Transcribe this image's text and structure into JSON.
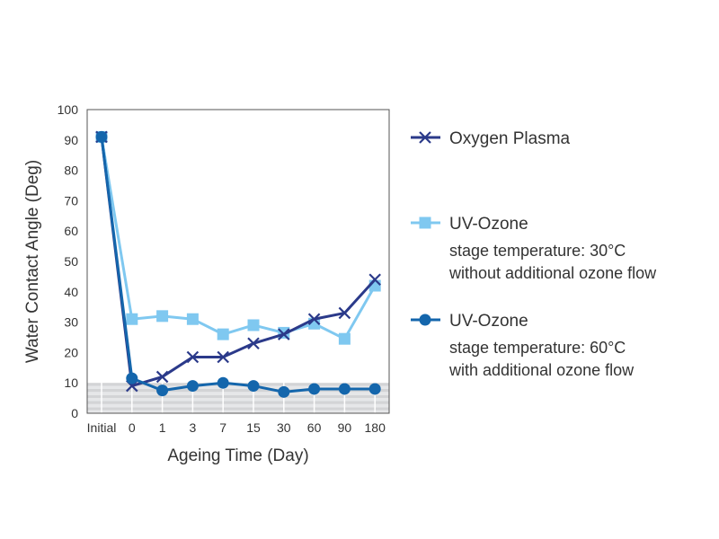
{
  "chart_data": {
    "type": "line",
    "xlabel": "Ageing Time (Day)",
    "ylabel": "Water Contact Angle (Deg)",
    "categories": [
      "Initial",
      "0",
      "1",
      "3",
      "7",
      "15",
      "30",
      "60",
      "90",
      "180"
    ],
    "ylim": [
      0,
      100
    ],
    "yticks": [
      "0",
      "10",
      "20",
      "30",
      "40",
      "50",
      "60",
      "70",
      "80",
      "90",
      "100"
    ],
    "grid": true,
    "legend_placement": "right",
    "series": [
      {
        "name": "Oxygen Plasma",
        "note": [],
        "marker": "x",
        "color": "#2b3a8a",
        "values": [
          91,
          9,
          12,
          18.5,
          18.5,
          23,
          26,
          31,
          33,
          44
        ]
      },
      {
        "name": "UV-Ozone",
        "note": [
          "stage temperature: 30°C",
          "without additional ozone flow"
        ],
        "marker": "square",
        "color": "#7fc8f0",
        "values": [
          91,
          31,
          32,
          31,
          26,
          29,
          26.5,
          29.5,
          24.5,
          42
        ]
      },
      {
        "name": "UV-Ozone",
        "note": [
          "stage temperature: 60°C",
          "with additional ozone flow"
        ],
        "marker": "circle",
        "color": "#1466ac",
        "values": [
          91,
          11.5,
          7.5,
          9,
          10,
          9,
          7,
          8,
          8,
          8
        ]
      }
    ]
  }
}
